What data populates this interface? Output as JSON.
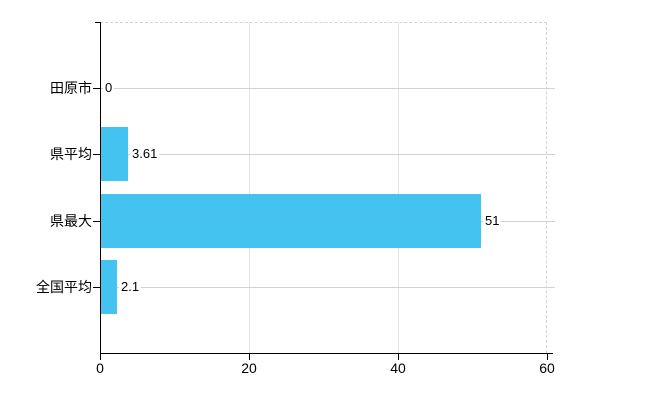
{
  "chart_data": {
    "type": "bar",
    "orientation": "horizontal",
    "categories": [
      "田原市",
      "県平均",
      "県最大",
      "全国平均"
    ],
    "values": [
      0,
      3.61,
      51,
      2.1
    ],
    "value_labels": [
      "0",
      "3.61",
      "51",
      "2.1"
    ],
    "title": "",
    "xlabel": "",
    "ylabel": "",
    "xlim": [
      0,
      60
    ],
    "xticks": [
      0,
      20,
      40,
      60
    ],
    "xtick_labels": [
      "0",
      "20",
      "40",
      "60"
    ],
    "grid": true,
    "legend": false
  },
  "colors": {
    "bar": "#45c3f0",
    "axis": "#000000",
    "text": "#000000",
    "vertical_grid": "#e4e4e4",
    "horizontal_grid": "#d2d2d2",
    "dashed_border": "#d4d4d4",
    "background": "#ffffff"
  }
}
